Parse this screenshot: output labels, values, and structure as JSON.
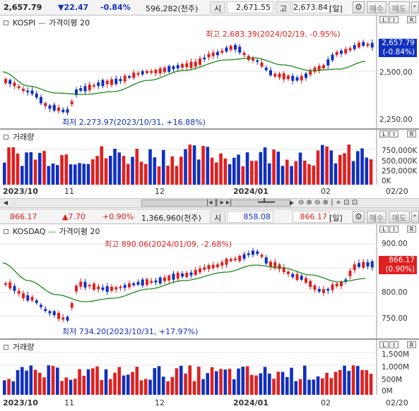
{
  "kospi": {
    "ticker_bar": {
      "price": "2,657.79",
      "change": "▼22.47",
      "change_pct": "-0.84%",
      "volume": "596,282(천주)",
      "open_label": "시",
      "open": "2,671.55",
      "high_label": "고",
      "high": "2,673.84",
      "period": "[일]"
    },
    "legend_name": "KOSPI",
    "legend_ma": "가격이평 20",
    "high_annot": "최고 2,683.39(2024/02/19, -0.95%)",
    "low_annot": "최저 2,273.97(2023/10/31, +16.88%)",
    "side_price": "2,657.79",
    "side_pct": "(-0.84%)",
    "yticks": [
      "2,500.00",
      "2,250.00"
    ],
    "volume_label": "거래량",
    "vol_ticks": [
      "750,000K",
      "500,000K",
      "250,000K",
      "0K"
    ],
    "xlabels": [
      "2023/10",
      "11",
      "12",
      "2024/01",
      "02",
      "02/20"
    ]
  },
  "kosdaq": {
    "ticker_bar": {
      "price": "866.17",
      "change": "▲7.70",
      "change_pct": "+0.90%",
      "volume": "1,366,960(천주)",
      "open_label": "시",
      "open": "858.08",
      "high": "866.17",
      "period": "[일]"
    },
    "legend_name": "KOSDAQ",
    "legend_ma": "가격이평 20",
    "high_annot": "최고 890.06(2024/01/09, -2.68%)",
    "low_annot": "최저 734.20(2023/10/31, +17.97%)",
    "side_price": "866.17",
    "side_pct": "(0.90%)",
    "yticks": [
      "900.00",
      "850.00",
      "800.00",
      "750.00"
    ],
    "volume_label": "거래량",
    "vol_ticks": [
      "1,500M",
      "1,000M",
      "500M",
      "0M"
    ],
    "xlabels": [
      "2023/10",
      "11",
      "12",
      "2024/01",
      "02",
      "02/20"
    ]
  },
  "buttons": {
    "buy": "매수",
    "sell": "매도"
  },
  "colors": {
    "up": "#e0201f",
    "down": "#1030c0",
    "ma": "#1a8a1a",
    "tag_down": "#1030c0",
    "tag_up": "#e0201f"
  },
  "icons": [
    "gear-icon",
    "chart-mode-icons",
    "scroll-left-icon",
    "scroll-right-icon",
    "play-controls-icon",
    "zoom-out-icon",
    "zoom-in-icon",
    "add-icon",
    "fit-icon"
  ]
}
